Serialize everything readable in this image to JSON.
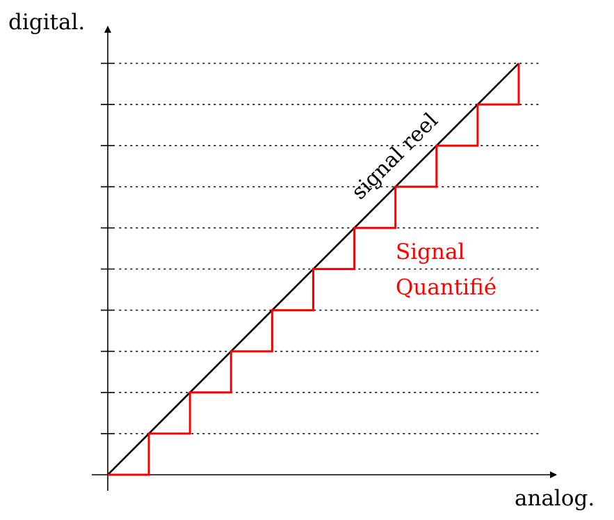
{
  "labels": {
    "y_axis": "digital.",
    "x_axis": "analog.",
    "real_signal": "signal reel",
    "quantized_line1": "Signal",
    "quantized_line2": "Quantifié"
  },
  "colors": {
    "axis": "#000000",
    "real_signal": "#000000",
    "quantized": "#ff0000",
    "grid": "#000000"
  },
  "diagram": {
    "levels": 10,
    "grid_style": "dotted"
  }
}
